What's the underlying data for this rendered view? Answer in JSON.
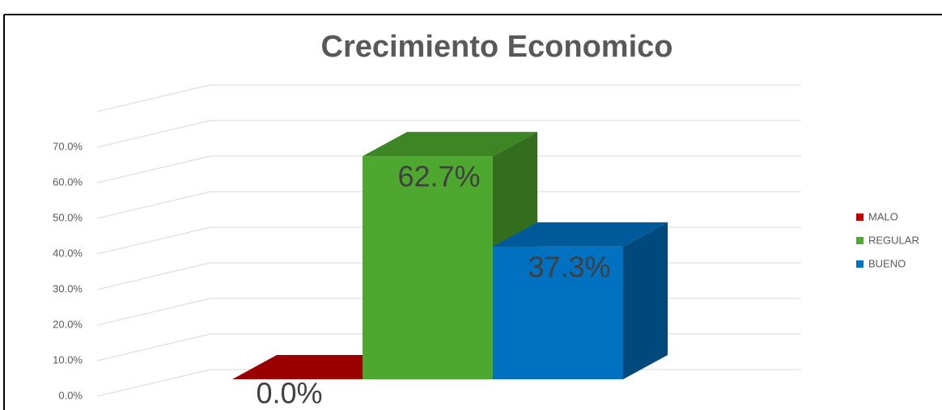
{
  "chart_data": {
    "type": "bar3d",
    "title": "Crecimiento Economico",
    "series": [
      {
        "name": "MALO",
        "color": "#c00000",
        "values": [
          0
        ],
        "value_labels": [
          "0.0%"
        ]
      },
      {
        "name": "REGULAR",
        "color": "#4ea72e",
        "values": [
          62.7
        ],
        "value_labels": [
          "62.7%"
        ]
      },
      {
        "name": "BUENO",
        "color": "#0070c0",
        "values": [
          37.3
        ],
        "value_labels": [
          "37.3%"
        ]
      }
    ],
    "ylim": [
      0,
      80
    ],
    "yticks": [
      {
        "value": 0,
        "label": "0.0%"
      },
      {
        "value": 10,
        "label": "10.0%"
      },
      {
        "value": 20,
        "label": "20.0%"
      },
      {
        "value": 30,
        "label": "30.0%"
      },
      {
        "value": 40,
        "label": "40.0%"
      },
      {
        "value": 50,
        "label": "50.0%"
      },
      {
        "value": 60,
        "label": "60.0%"
      },
      {
        "value": 70,
        "label": "70.0%"
      }
    ],
    "grid": true,
    "legend": "right"
  }
}
